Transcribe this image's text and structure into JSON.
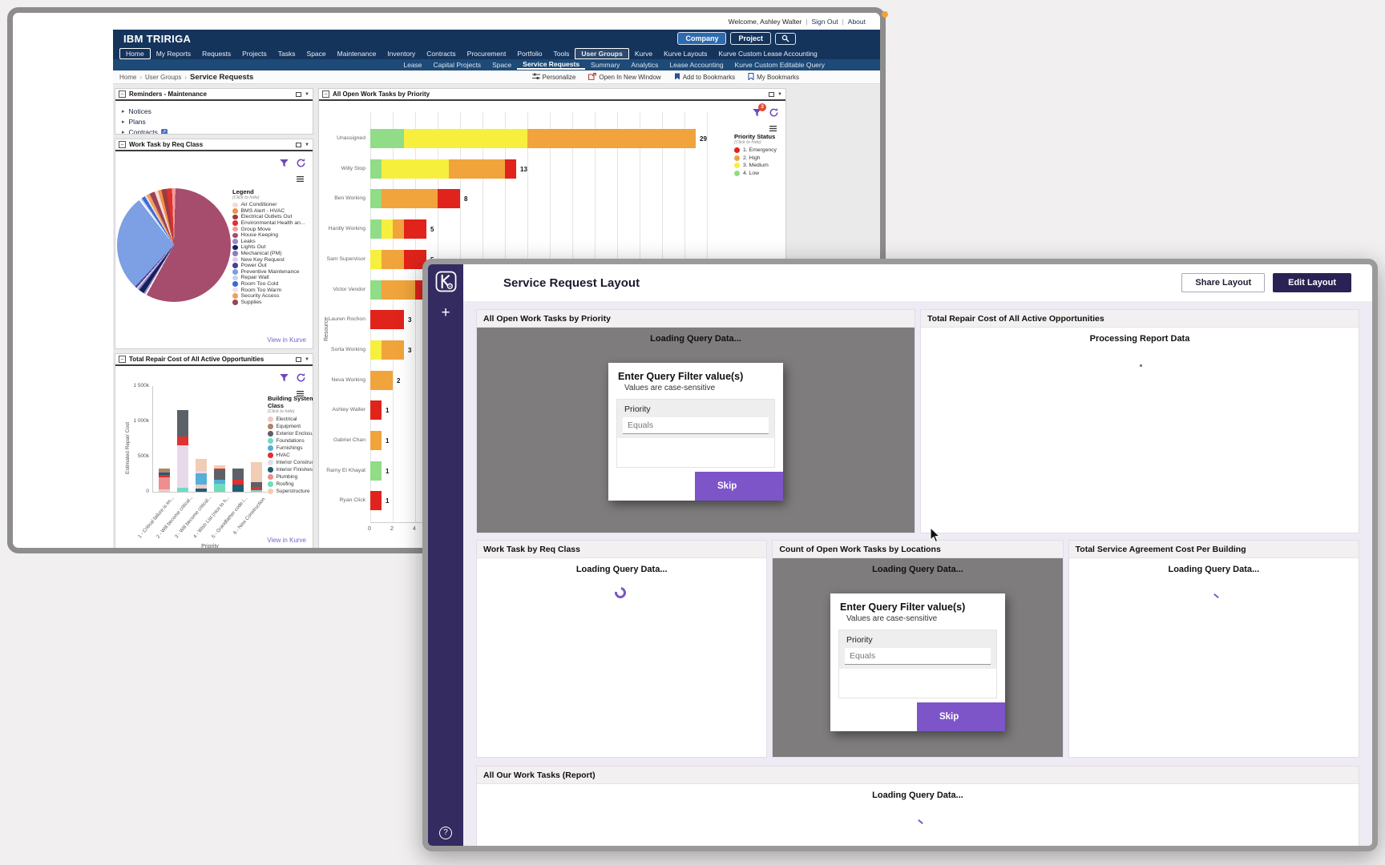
{
  "tririga": {
    "topbar": {
      "welcome": "Welcome, Ashley Walter",
      "sign_out": "Sign Out",
      "about": "About"
    },
    "brand": "IBM TRIRIGA",
    "company_button": "Company",
    "project_button": "Project",
    "nav_primary": [
      "Home",
      "My Reports",
      "Requests",
      "Projects",
      "Tasks",
      "Space",
      "Maintenance",
      "Inventory",
      "Contracts",
      "Procurement",
      "Portfolio",
      "Tools",
      "User Groups",
      "Kurve",
      "Kurve Layouts",
      "Kurve Custom Lease Accounting"
    ],
    "nav_primary_current": "Home",
    "nav_primary_active": "User Groups",
    "nav_secondary": [
      "Lease",
      "Capital Projects",
      "Space",
      "Service Requests",
      "Summary",
      "Analytics",
      "Lease Accounting",
      "Kurve Custom Editable Query"
    ],
    "nav_secondary_active": "Service Requests",
    "breadcrumb": [
      "Home",
      "User Groups",
      "Service Requests"
    ],
    "toolbar": [
      {
        "label": "Personalize",
        "icon": "personalize"
      },
      {
        "label": "Open In New Window",
        "icon": "new-window"
      },
      {
        "label": "Add to Bookmarks",
        "icon": "bookmark-add"
      },
      {
        "label": "My Bookmarks",
        "icon": "bookmark"
      }
    ],
    "reminders": {
      "title": "Reminders - Maintenance",
      "items": [
        "Notices",
        "Plans",
        "Contracts"
      ]
    },
    "pie_panel": {
      "title": "Work Task by Req Class",
      "legend_title": "Legend",
      "legend_hint": "(Click to hide)",
      "link": "View in Kurve"
    },
    "repair_panel": {
      "title": "Total Repair Cost of All Active Opportunities",
      "legend_title": "Building System Class",
      "legend_hint": "(Click to hide)",
      "link": "View in Kurve",
      "ylabel": "Estimated Repair Cost",
      "xlabel": "Priority"
    },
    "priority_panel": {
      "title": "All Open Work Tasks by Priority",
      "legend_title": "Priority Status",
      "legend_hint": "(Click to hide)",
      "ylabel": "Resource",
      "filter_badge": "3"
    }
  },
  "kurve": {
    "title": "Service Request Layout",
    "share_button": "Share Layout",
    "edit_button": "Edit Layout",
    "panels": [
      {
        "title": "All Open Work Tasks by Priority",
        "status": "Loading Query Data...",
        "overlay": true,
        "dialog": true,
        "row": 1,
        "spinner": "none"
      },
      {
        "title": "Total Repair Cost of All Active Opportunities",
        "status": "Processing Report Data",
        "overlay": false,
        "dialog": false,
        "row": 1,
        "spinner": "dot"
      },
      {
        "title": "Work Task by Req Class",
        "status": "Loading Query Data...",
        "overlay": false,
        "dialog": false,
        "row": 2,
        "spinner": "arc"
      },
      {
        "title": "Count of Open Work Tasks by Locations",
        "status": "Loading Query Data...",
        "overlay": true,
        "dialog": true,
        "row": 2,
        "spinner": "none"
      },
      {
        "title": "Total Service Agreement Cost Per Building",
        "status": "Loading Query Data...",
        "overlay": false,
        "dialog": false,
        "row": 2,
        "spinner": "dash"
      },
      {
        "title": "All Our Work Tasks (Report)",
        "status": "Loading Query Data...",
        "overlay": false,
        "dialog": false,
        "row": 3,
        "spinner": "dash"
      }
    ],
    "dialog": {
      "title": "Enter Query Filter value(s)",
      "subtitle": "Values are case-sensitive",
      "field_label": "Priority",
      "field_placeholder": "Equals",
      "skip_button": "Skip"
    }
  },
  "chart_data": [
    {
      "type": "pie",
      "title": "Work Task by Req Class",
      "legend_title": "Legend",
      "values_unit": "percent_estimated",
      "slices": [
        {
          "label": "Air Conditioner",
          "color": "#F5DAD6",
          "value": 1
        },
        {
          "label": "BMS Alert - HVAC",
          "color": "#EE9349",
          "value": 1
        },
        {
          "label": "Electrical Outlets Out",
          "color": "#9E3B3E",
          "value": 1.5
        },
        {
          "label": "Environmental Health an...",
          "color": "#E0312E",
          "value": 1.5
        },
        {
          "label": "Group Move",
          "color": "#F19C9C",
          "value": 1
        },
        {
          "label": "House Keeping",
          "color": "#A64D6D",
          "value": 58
        },
        {
          "label": "Leaks",
          "color": "#9B8BC4",
          "value": 0.5
        },
        {
          "label": "Lights Out",
          "color": "#14215C",
          "value": 1.5
        },
        {
          "label": "Mechanical (PM)",
          "color": "#8F7BBF",
          "value": 0.5
        },
        {
          "label": "New Key Request",
          "color": "#D9D2EC",
          "value": 0.5
        },
        {
          "label": "Power Out",
          "color": "#4B3F8F",
          "value": 0.5
        },
        {
          "label": "Preventive Maintenance",
          "color": "#7D9FE3",
          "value": 28
        },
        {
          "label": "Repair Wall",
          "color": "#C4D3EE",
          "value": 0.5
        },
        {
          "label": "Room Too Cold",
          "color": "#3E6BD6",
          "value": 1
        },
        {
          "label": "Room Too Warm",
          "color": "#F3E1DE",
          "value": 0.5
        },
        {
          "label": "Security Access",
          "color": "#EFA15C",
          "value": 1
        },
        {
          "label": "Supplies",
          "color": "#9C4257",
          "value": 1.5
        }
      ]
    },
    {
      "type": "bar",
      "stacked": true,
      "title": "Total Repair Cost of All Active Opportunities",
      "xlabel": "Priority",
      "ylabel": "Estimated Repair Cost",
      "ylim": [
        0,
        1500
      ],
      "yticks": [
        {
          "v": 0,
          "label": "0"
        },
        {
          "v": 500,
          "label": "500k"
        },
        {
          "v": 1000,
          "label": "1 000k"
        },
        {
          "v": 1500,
          "label": "1 500k"
        }
      ],
      "legend_title": "Building System Class",
      "values_unit": "thousand_USD_estimated",
      "classes": [
        {
          "name": "Electrical",
          "color": "#EFC9C6"
        },
        {
          "name": "Equipment",
          "color": "#B08468"
        },
        {
          "name": "Exterior Enclosure",
          "color": "#5C6068"
        },
        {
          "name": "Foundations",
          "color": "#6FDBC7"
        },
        {
          "name": "Furnishings",
          "color": "#56AED9"
        },
        {
          "name": "HVAC",
          "color": "#E0312E"
        },
        {
          "name": "Interior Construction",
          "color": "#E8D9EA"
        },
        {
          "name": "Interior Finishes",
          "color": "#205E72"
        },
        {
          "name": "Plumbing",
          "color": "#EC8F8F"
        },
        {
          "name": "Roofing",
          "color": "#6FDCB9"
        },
        {
          "name": "Superstructure",
          "color": "#F0CDB4"
        }
      ],
      "bars": [
        {
          "label": "1 - Critical failure is im...",
          "segments": [
            [
              "Electrical",
              30
            ],
            [
              "Plumbing",
              170
            ],
            [
              "HVAC",
              40
            ],
            [
              "Interior Finishes",
              30
            ],
            [
              "Equipment",
              60
            ]
          ]
        },
        {
          "label": "2 - Will become critical...",
          "segments": [
            [
              "Foundations",
              60
            ],
            [
              "Interior Construction",
              600
            ],
            [
              "HVAC",
              120
            ],
            [
              "Exterior Enclosure",
              380
            ]
          ]
        },
        {
          "label": "3 - Will become critical...",
          "segments": [
            [
              "Interior Finishes",
              40
            ],
            [
              "Electrical",
              60
            ],
            [
              "Furnishings",
              160
            ],
            [
              "Interior Construction",
              30
            ],
            [
              "Superstructure",
              180
            ]
          ]
        },
        {
          "label": "4 - Wish List (nice to h...",
          "segments": [
            [
              "Roofing",
              110
            ],
            [
              "Furnishings",
              60
            ],
            [
              "Exterior Enclosure",
              140
            ],
            [
              "HVAC",
              25
            ],
            [
              "Superstructure",
              40
            ]
          ]
        },
        {
          "label": "5 - Grandfather code i...",
          "segments": [
            [
              "Interior Finishes",
              100
            ],
            [
              "HVAC",
              70
            ],
            [
              "Exterior Enclosure",
              160
            ]
          ]
        },
        {
          "label": "6 - New Construction",
          "segments": [
            [
              "Foundations",
              20
            ],
            [
              "HVAC",
              50
            ],
            [
              "Exterior Enclosure",
              70
            ],
            [
              "Superstructure",
              280
            ]
          ]
        }
      ]
    },
    {
      "type": "bar",
      "orientation": "horizontal",
      "stacked": true,
      "title": "All Open Work Tasks by Priority",
      "ylabel": "Resource",
      "xlim": [
        0,
        30
      ],
      "xtick_step": 2,
      "legend_title": "Priority Status",
      "legend": [
        {
          "key": "emergency",
          "label": "1. Emergency",
          "color": "#E0231B"
        },
        {
          "key": "high",
          "label": "2. High",
          "color": "#F0A43B"
        },
        {
          "key": "medium",
          "label": "3. Medium",
          "color": "#F6EF3E"
        },
        {
          "key": "low",
          "label": "4. Low",
          "color": "#90DC87"
        }
      ],
      "rows": [
        {
          "label": "Unassigned",
          "total": 29,
          "segments": {
            "low": 3,
            "medium": 11,
            "high": 15,
            "emergency": 0
          }
        },
        {
          "label": "Willy Stop",
          "total": 13,
          "segments": {
            "low": 1,
            "medium": 6,
            "high": 5,
            "emergency": 1
          }
        },
        {
          "label": "Ben Working",
          "total": 8,
          "segments": {
            "low": 1,
            "medium": 0,
            "high": 5,
            "emergency": 2
          }
        },
        {
          "label": "Hardly Working",
          "total": 5,
          "segments": {
            "low": 1,
            "medium": 1,
            "high": 1,
            "emergency": 2
          }
        },
        {
          "label": "Sam Supervisor",
          "total": 5,
          "segments": {
            "low": 0,
            "medium": 1,
            "high": 2,
            "emergency": 2
          }
        },
        {
          "label": "Victor Vendor",
          "total": 5,
          "segments": {
            "low": 1,
            "medium": 0,
            "high": 3,
            "emergency": 1
          }
        },
        {
          "label": "Lauren Rochon",
          "total": 3,
          "segments": {
            "low": 0,
            "medium": 0,
            "high": 0,
            "emergency": 3
          }
        },
        {
          "label": "Sorta Working",
          "total": 3,
          "segments": {
            "low": 0,
            "medium": 1,
            "high": 2,
            "emergency": 0
          }
        },
        {
          "label": "Neva Working",
          "total": 2,
          "segments": {
            "low": 0,
            "medium": 0,
            "high": 2,
            "emergency": 0
          }
        },
        {
          "label": "Ashley Walter",
          "total": 1,
          "segments": {
            "low": 0,
            "medium": 0,
            "high": 0,
            "emergency": 1
          }
        },
        {
          "label": "Gabriel Chan",
          "total": 1,
          "segments": {
            "low": 0,
            "medium": 0,
            "high": 1,
            "emergency": 0
          }
        },
        {
          "label": "Ramy El Khayat",
          "total": 1,
          "segments": {
            "low": 1,
            "medium": 0,
            "high": 0,
            "emergency": 0
          }
        },
        {
          "label": "Ryan Click",
          "total": 1,
          "segments": {
            "low": 0,
            "medium": 0,
            "high": 0,
            "emergency": 1
          }
        }
      ]
    }
  ]
}
